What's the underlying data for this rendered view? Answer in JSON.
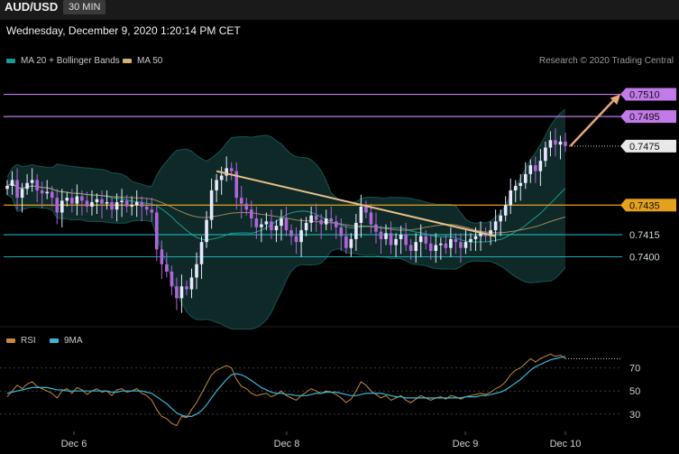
{
  "header": {
    "symbol": "AUD/USD",
    "interval": "30 MIN",
    "datetime": "Wednesday, December 9, 2020 1:20:14 PM CET",
    "legend_ma20": "MA 20 + Bollinger Bands",
    "legend_ma50": "MA 50",
    "credit": "Research © 2020 Trading Central"
  },
  "colors": {
    "ma20": "#1a9b8f",
    "ma50": "#d8b070",
    "purple": "#c27ae8",
    "gold": "#e3a11d",
    "teal_level": "#1ec6c8",
    "rsi": "#c88a3a",
    "rsi_ma": "#3ab6d8",
    "bull": "#e8e8ff",
    "bear": "#b066d8"
  },
  "rsi_legend": {
    "rsi": "RSI",
    "ma": "9MA"
  },
  "chart_data": [
    {
      "type": "candlestick",
      "title": "AUD/USD 30 MIN",
      "y_unit": "price",
      "ylim": [
        0.736,
        0.7525
      ],
      "x_tick_labels": [
        "Dec 6",
        "Dec 8",
        "Dec 9",
        "Dec 10"
      ],
      "closes": [
        0.7448,
        0.7452,
        0.744,
        0.7446,
        0.745,
        0.7452,
        0.7445,
        0.7443,
        0.7444,
        0.744,
        0.743,
        0.7438,
        0.744,
        0.7436,
        0.7441,
        0.7438,
        0.7434,
        0.7437,
        0.7439,
        0.7436,
        0.7437,
        0.7432,
        0.7437,
        0.7438,
        0.7434,
        0.7435,
        0.7437,
        0.7434,
        0.7432,
        0.743,
        0.7405,
        0.7395,
        0.739,
        0.738,
        0.7372,
        0.738,
        0.7378,
        0.7386,
        0.7395,
        0.741,
        0.7425,
        0.7445,
        0.7452,
        0.7455,
        0.746,
        0.7458,
        0.744,
        0.7436,
        0.7432,
        0.7426,
        0.742,
        0.7422,
        0.7424,
        0.7418,
        0.7421,
        0.7426,
        0.7418,
        0.7414,
        0.741,
        0.7418,
        0.7423,
        0.7428,
        0.7425,
        0.7422,
        0.7426,
        0.7424,
        0.742,
        0.7414,
        0.7406,
        0.7412,
        0.7423,
        0.7434,
        0.743,
        0.7422,
        0.7417,
        0.7412,
        0.7416,
        0.7408,
        0.7412,
        0.7415,
        0.7408,
        0.7404,
        0.741,
        0.7414,
        0.7409,
        0.7404,
        0.7408,
        0.7409,
        0.7406,
        0.7412,
        0.741,
        0.7406,
        0.741,
        0.7412,
        0.7414,
        0.7416,
        0.7414,
        0.7418,
        0.7424,
        0.7428,
        0.7435,
        0.7445,
        0.7448,
        0.745,
        0.7456,
        0.7462,
        0.7458,
        0.7465,
        0.7474,
        0.7479,
        0.7476,
        0.7478,
        0.7475
      ],
      "levels": [
        {
          "label": "0.7510",
          "value": 0.751,
          "color": "#c27ae8"
        },
        {
          "label": "0.7495",
          "value": 0.7495,
          "color": "#c27ae8"
        },
        {
          "label": "0.7475",
          "value": 0.7475,
          "color": "#e8e8e8"
        },
        {
          "label": "0.7435",
          "value": 0.7435,
          "color": "#e3a11d"
        },
        {
          "label": "0.7415",
          "value": 0.7415,
          "color": "#1ec6c8"
        },
        {
          "label": "0.7400",
          "value": 0.74,
          "color": "#1ec6c8"
        }
      ],
      "trendline": {
        "from": [
          42,
          0.7458
        ],
        "to": [
          98,
          0.7414
        ]
      },
      "projection_arrow": {
        "from": [
          113,
          0.7475
        ],
        "to": [
          125,
          0.751
        ]
      }
    },
    {
      "type": "line",
      "title": "RSI",
      "ylim": [
        15,
        90
      ],
      "y_tick_labels": [
        "70",
        "50",
        "30"
      ],
      "y_ticks": [
        70,
        50,
        30
      ],
      "series": [
        {
          "name": "RSI",
          "values": [
            45,
            50,
            55,
            52,
            56,
            58,
            54,
            52,
            50,
            48,
            44,
            50,
            52,
            48,
            53,
            51,
            47,
            50,
            52,
            49,
            50,
            46,
            51,
            52,
            49,
            50,
            52,
            48,
            46,
            42,
            34,
            28,
            26,
            22,
            20,
            28,
            27,
            34,
            40,
            48,
            56,
            64,
            68,
            70,
            72,
            70,
            60,
            54,
            52,
            48,
            46,
            47,
            48,
            45,
            47,
            50,
            46,
            44,
            42,
            46,
            49,
            52,
            50,
            48,
            50,
            49,
            47,
            44,
            40,
            43,
            50,
            58,
            55,
            50,
            47,
            44,
            46,
            42,
            44,
            46,
            42,
            40,
            43,
            46,
            44,
            42,
            44,
            45,
            43,
            46,
            45,
            43,
            45,
            46,
            47,
            48,
            47,
            49,
            52,
            54,
            58,
            64,
            68,
            70,
            74,
            78,
            75,
            78,
            80,
            82,
            80,
            81,
            78
          ]
        },
        {
          "name": "9MA",
          "values": [
            48,
            49,
            50,
            51,
            52,
            53,
            53,
            53,
            53,
            52,
            51,
            51,
            50,
            50,
            50,
            50,
            50,
            50,
            50,
            50,
            50,
            49,
            49,
            50,
            50,
            50,
            50,
            50,
            49,
            48,
            45,
            42,
            39,
            35,
            31,
            29,
            28,
            28,
            30,
            33,
            38,
            44,
            50,
            55,
            60,
            64,
            65,
            64,
            62,
            59,
            56,
            53,
            51,
            49,
            48,
            48,
            47,
            47,
            46,
            46,
            46,
            47,
            48,
            48,
            49,
            49,
            49,
            48,
            47,
            46,
            46,
            47,
            48,
            48,
            48,
            48,
            47,
            46,
            45,
            45,
            44,
            44,
            44,
            44,
            44,
            44,
            44,
            44,
            44,
            44,
            44,
            44,
            45,
            45,
            45,
            46,
            46,
            47,
            48,
            49,
            51,
            54,
            57,
            60,
            64,
            68,
            71,
            73,
            75,
            77,
            78,
            79,
            80
          ]
        }
      ]
    }
  ]
}
